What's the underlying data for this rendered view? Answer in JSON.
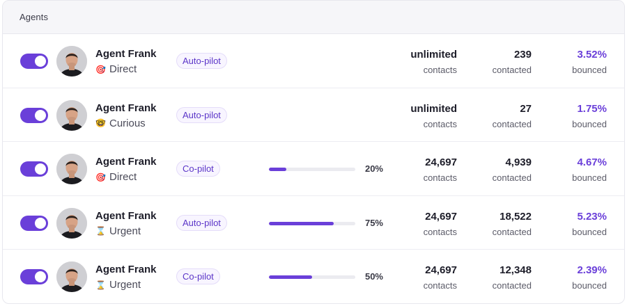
{
  "panel": {
    "title": "Agents"
  },
  "colors": {
    "accent": "#6a3fd9",
    "badge_bg": "#f8f5ff",
    "header_bg": "#f6f6f9"
  },
  "agents": [
    {
      "enabled": true,
      "name": "Agent Frank",
      "tone_icon": "🎯",
      "tone": "Direct",
      "mode": "Auto-pilot",
      "progress": null,
      "progress_label": "",
      "contacts": "unlimited",
      "contacts_label": "contacts",
      "contacted": "239",
      "contacted_label": "contacted",
      "bounced": "3.52%",
      "bounced_label": "bounced"
    },
    {
      "enabled": true,
      "name": "Agent Frank",
      "tone_icon": "🤓",
      "tone": "Curious",
      "mode": "Auto-pilot",
      "progress": null,
      "progress_label": "",
      "contacts": "unlimited",
      "contacts_label": "contacts",
      "contacted": "27",
      "contacted_label": "contacted",
      "bounced": "1.75%",
      "bounced_label": "bounced"
    },
    {
      "enabled": true,
      "name": "Agent Frank",
      "tone_icon": "🎯",
      "tone": "Direct",
      "mode": "Co-pilot",
      "progress": 20,
      "progress_label": "20%",
      "contacts": "24,697",
      "contacts_label": "contacts",
      "contacted": "4,939",
      "contacted_label": "contacted",
      "bounced": "4.67%",
      "bounced_label": "bounced"
    },
    {
      "enabled": true,
      "name": "Agent Frank",
      "tone_icon": "⌛",
      "tone": "Urgent",
      "mode": "Auto-pilot",
      "progress": 75,
      "progress_label": "75%",
      "contacts": "24,697",
      "contacts_label": "contacts",
      "contacted": "18,522",
      "contacted_label": "contacted",
      "bounced": "5.23%",
      "bounced_label": "bounced"
    },
    {
      "enabled": true,
      "name": "Agent Frank",
      "tone_icon": "⌛",
      "tone": "Urgent",
      "mode": "Co-pilot",
      "progress": 50,
      "progress_label": "50%",
      "contacts": "24,697",
      "contacts_label": "contacts",
      "contacted": "12,348",
      "contacted_label": "contacted",
      "bounced": "2.39%",
      "bounced_label": "bounced"
    }
  ]
}
